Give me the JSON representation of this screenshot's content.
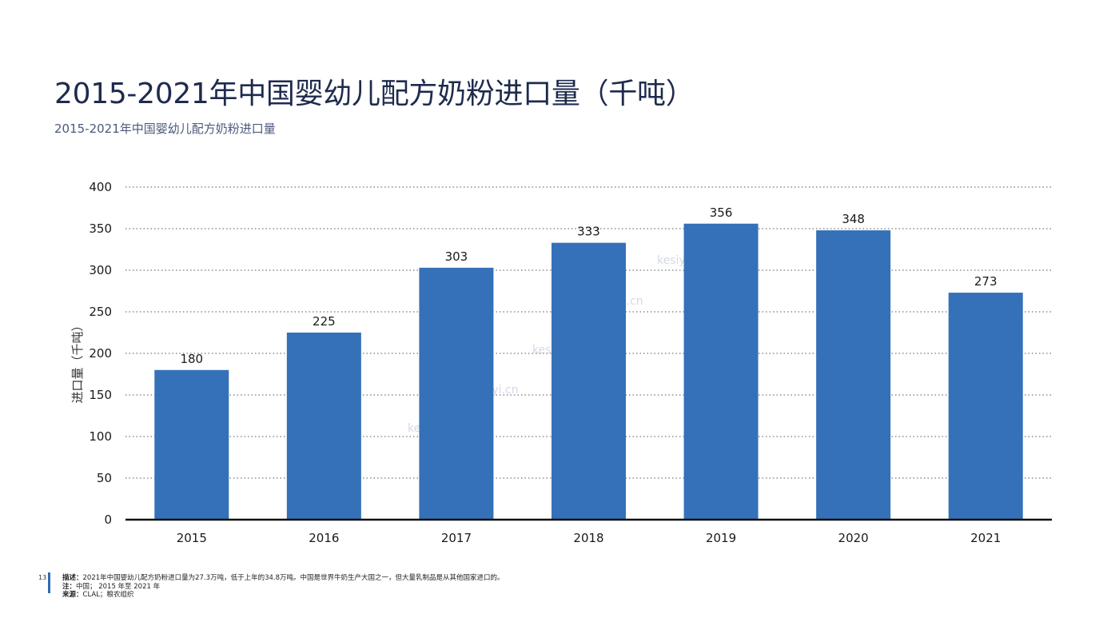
{
  "page": {
    "title": "2015-2021年中国婴幼儿配方奶粉进口量（千吨）",
    "subtitle": "2015-2021年中国婴幼儿配方奶粉进口量",
    "watermark": "kesiyi.cn",
    "page_number": "13",
    "footer": {
      "desc_label": "描述：",
      "desc_text": "2021年中国婴幼儿配方奶粉进口量为27.3万吨，低于上年的34.8万吨。中国是世界牛奶生产大国之一，但大量乳制品是从其他国家进口的。",
      "note_label": "注：",
      "note_text": "中国； 2015 年至 2021 年",
      "source_label": "来源：",
      "source_text": "CLAL；粮农组织"
    },
    "colors": {
      "bar": "#3471b8",
      "axis": "#111111",
      "grid": "#555555"
    }
  },
  "chart_data": {
    "type": "bar",
    "categories": [
      "2015",
      "2016",
      "2017",
      "2018",
      "2019",
      "2020",
      "2021"
    ],
    "values": [
      180,
      225,
      303,
      333,
      356,
      348,
      273
    ],
    "ylabel": "进口量（千吨）",
    "xlabel": "",
    "ylim": [
      0,
      400
    ],
    "yticks": [
      0,
      50,
      100,
      150,
      200,
      250,
      300,
      350,
      400
    ],
    "grid": "horizontal dotted",
    "data_labels": true
  }
}
